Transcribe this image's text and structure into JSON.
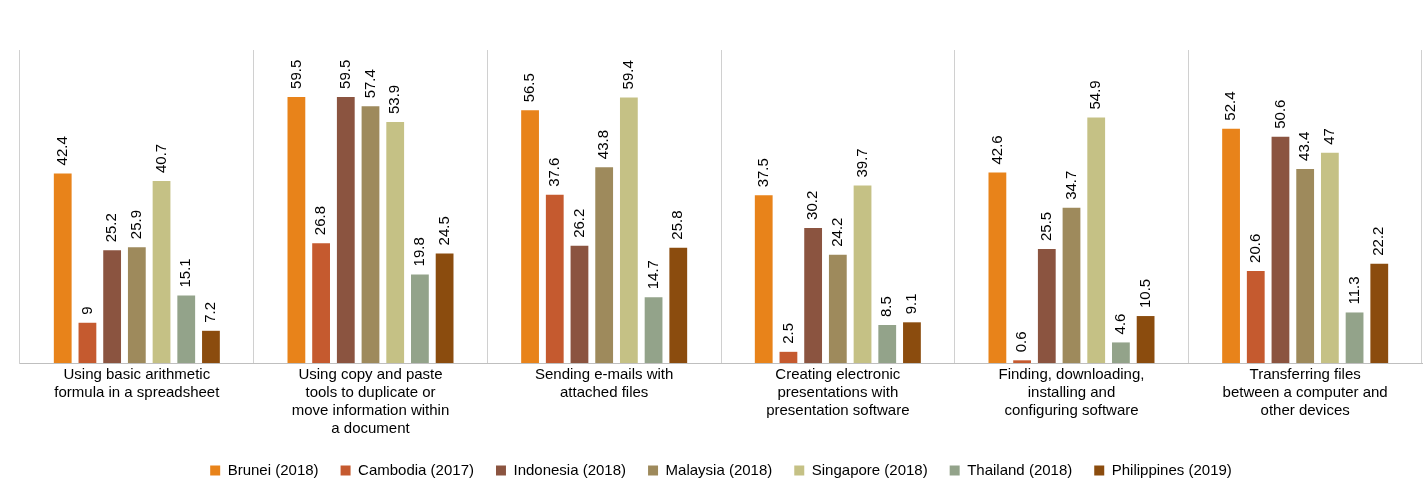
{
  "chart_data": {
    "type": "bar",
    "categories": [
      "Using basic arithmetic formula in a spreadsheet",
      "Using copy and paste tools to duplicate or move information within a document",
      "Sending e-mails with attached files",
      "Creating electronic presentations with presentation software",
      "Finding, downloading, installing and configuring software",
      "Transferring files between a computer and other devices"
    ],
    "series": [
      {
        "name": "Brunei (2018)",
        "color": "#e8831a",
        "values": [
          42.4,
          59.5,
          56.5,
          37.5,
          42.6,
          52.4
        ]
      },
      {
        "name": "Cambodia (2017)",
        "color": "#c55a2f",
        "values": [
          9,
          26.8,
          37.6,
          2.5,
          0.6,
          20.6
        ]
      },
      {
        "name": "Indonesia (2018)",
        "color": "#8b5440",
        "values": [
          25.2,
          59.5,
          26.2,
          30.2,
          25.5,
          50.6
        ]
      },
      {
        "name": "Malaysia (2018)",
        "color": "#9e8a5c",
        "values": [
          25.9,
          57.4,
          43.8,
          24.2,
          34.7,
          43.4
        ]
      },
      {
        "name": "Singapore (2018)",
        "color": "#c5c185",
        "values": [
          40.7,
          53.9,
          59.4,
          39.7,
          54.9,
          47
        ]
      },
      {
        "name": "Thailand (2018)",
        "color": "#93a38a",
        "values": [
          15.1,
          19.8,
          14.7,
          8.5,
          4.6,
          11.3
        ]
      },
      {
        "name": "Philippines (2019)",
        "color": "#8b4c0e",
        "values": [
          7.2,
          24.5,
          25.8,
          9.1,
          10.5,
          22.2
        ]
      }
    ],
    "ylim": [
      0,
      70
    ],
    "data_labels": true,
    "grid": "x",
    "legend": "bottom",
    "tick_labels": "x"
  }
}
